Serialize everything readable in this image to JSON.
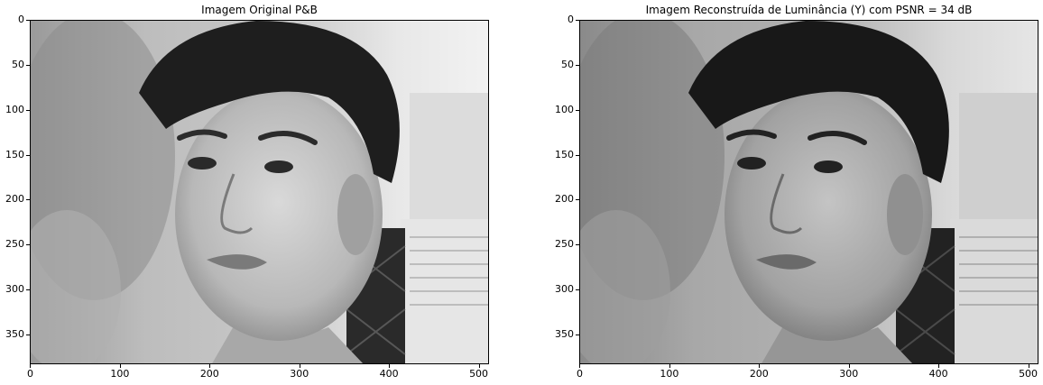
{
  "panels": [
    {
      "title": "Imagem Original P&B",
      "image_kind": "grayscale portrait photo",
      "y_ticks": [
        "0",
        "50",
        "100",
        "150",
        "200",
        "250",
        "300",
        "350"
      ],
      "x_ticks": [
        "0",
        "100",
        "200",
        "300",
        "400",
        "500"
      ]
    },
    {
      "title": "Imagem Reconstruída de Luminância (Y) com PSNR = 34 dB",
      "image_kind": "grayscale portrait photo",
      "y_ticks": [
        "0",
        "50",
        "100",
        "150",
        "200",
        "250",
        "300",
        "350"
      ],
      "x_ticks": [
        "0",
        "100",
        "200",
        "300",
        "400",
        "500"
      ]
    }
  ],
  "colors": {
    "background": "#ffffff",
    "axis": "#000000"
  }
}
